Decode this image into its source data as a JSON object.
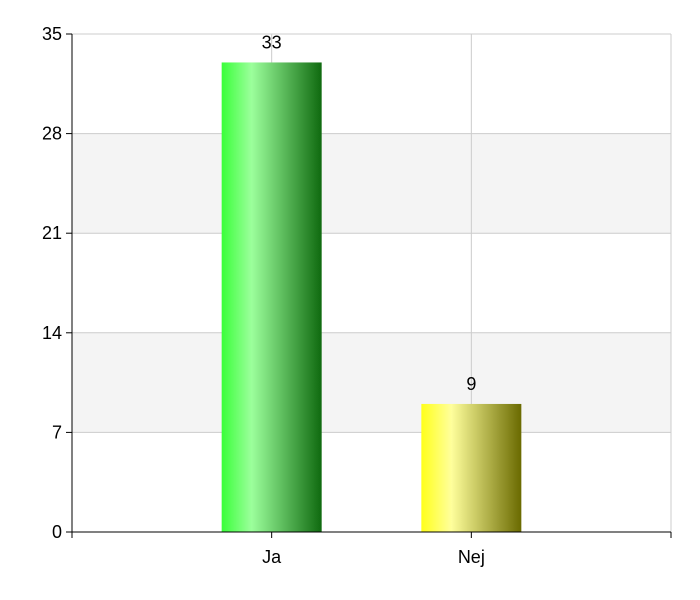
{
  "chart_data": {
    "type": "bar",
    "title": "",
    "xlabel": "",
    "ylabel": "",
    "categories": [
      "Ja",
      "Nej"
    ],
    "values": [
      33,
      9
    ],
    "data_labels": [
      "33",
      "9"
    ],
    "ylim": [
      0,
      35
    ],
    "yticks": [
      0,
      7,
      14,
      21,
      28,
      35
    ],
    "ytick_labels": [
      "0",
      "7",
      "14",
      "21",
      "28",
      "35"
    ],
    "grid": true,
    "bar_colors": [
      {
        "light": "#9cff9c",
        "mid": "#39ff39",
        "dark": "#0f6a0f"
      },
      {
        "light": "#ffff9c",
        "mid": "#ffff1a",
        "dark": "#6a6a00"
      }
    ],
    "band_color": "#f4f4f4",
    "grid_color": "#cccccc",
    "axis_color": "#000000"
  }
}
